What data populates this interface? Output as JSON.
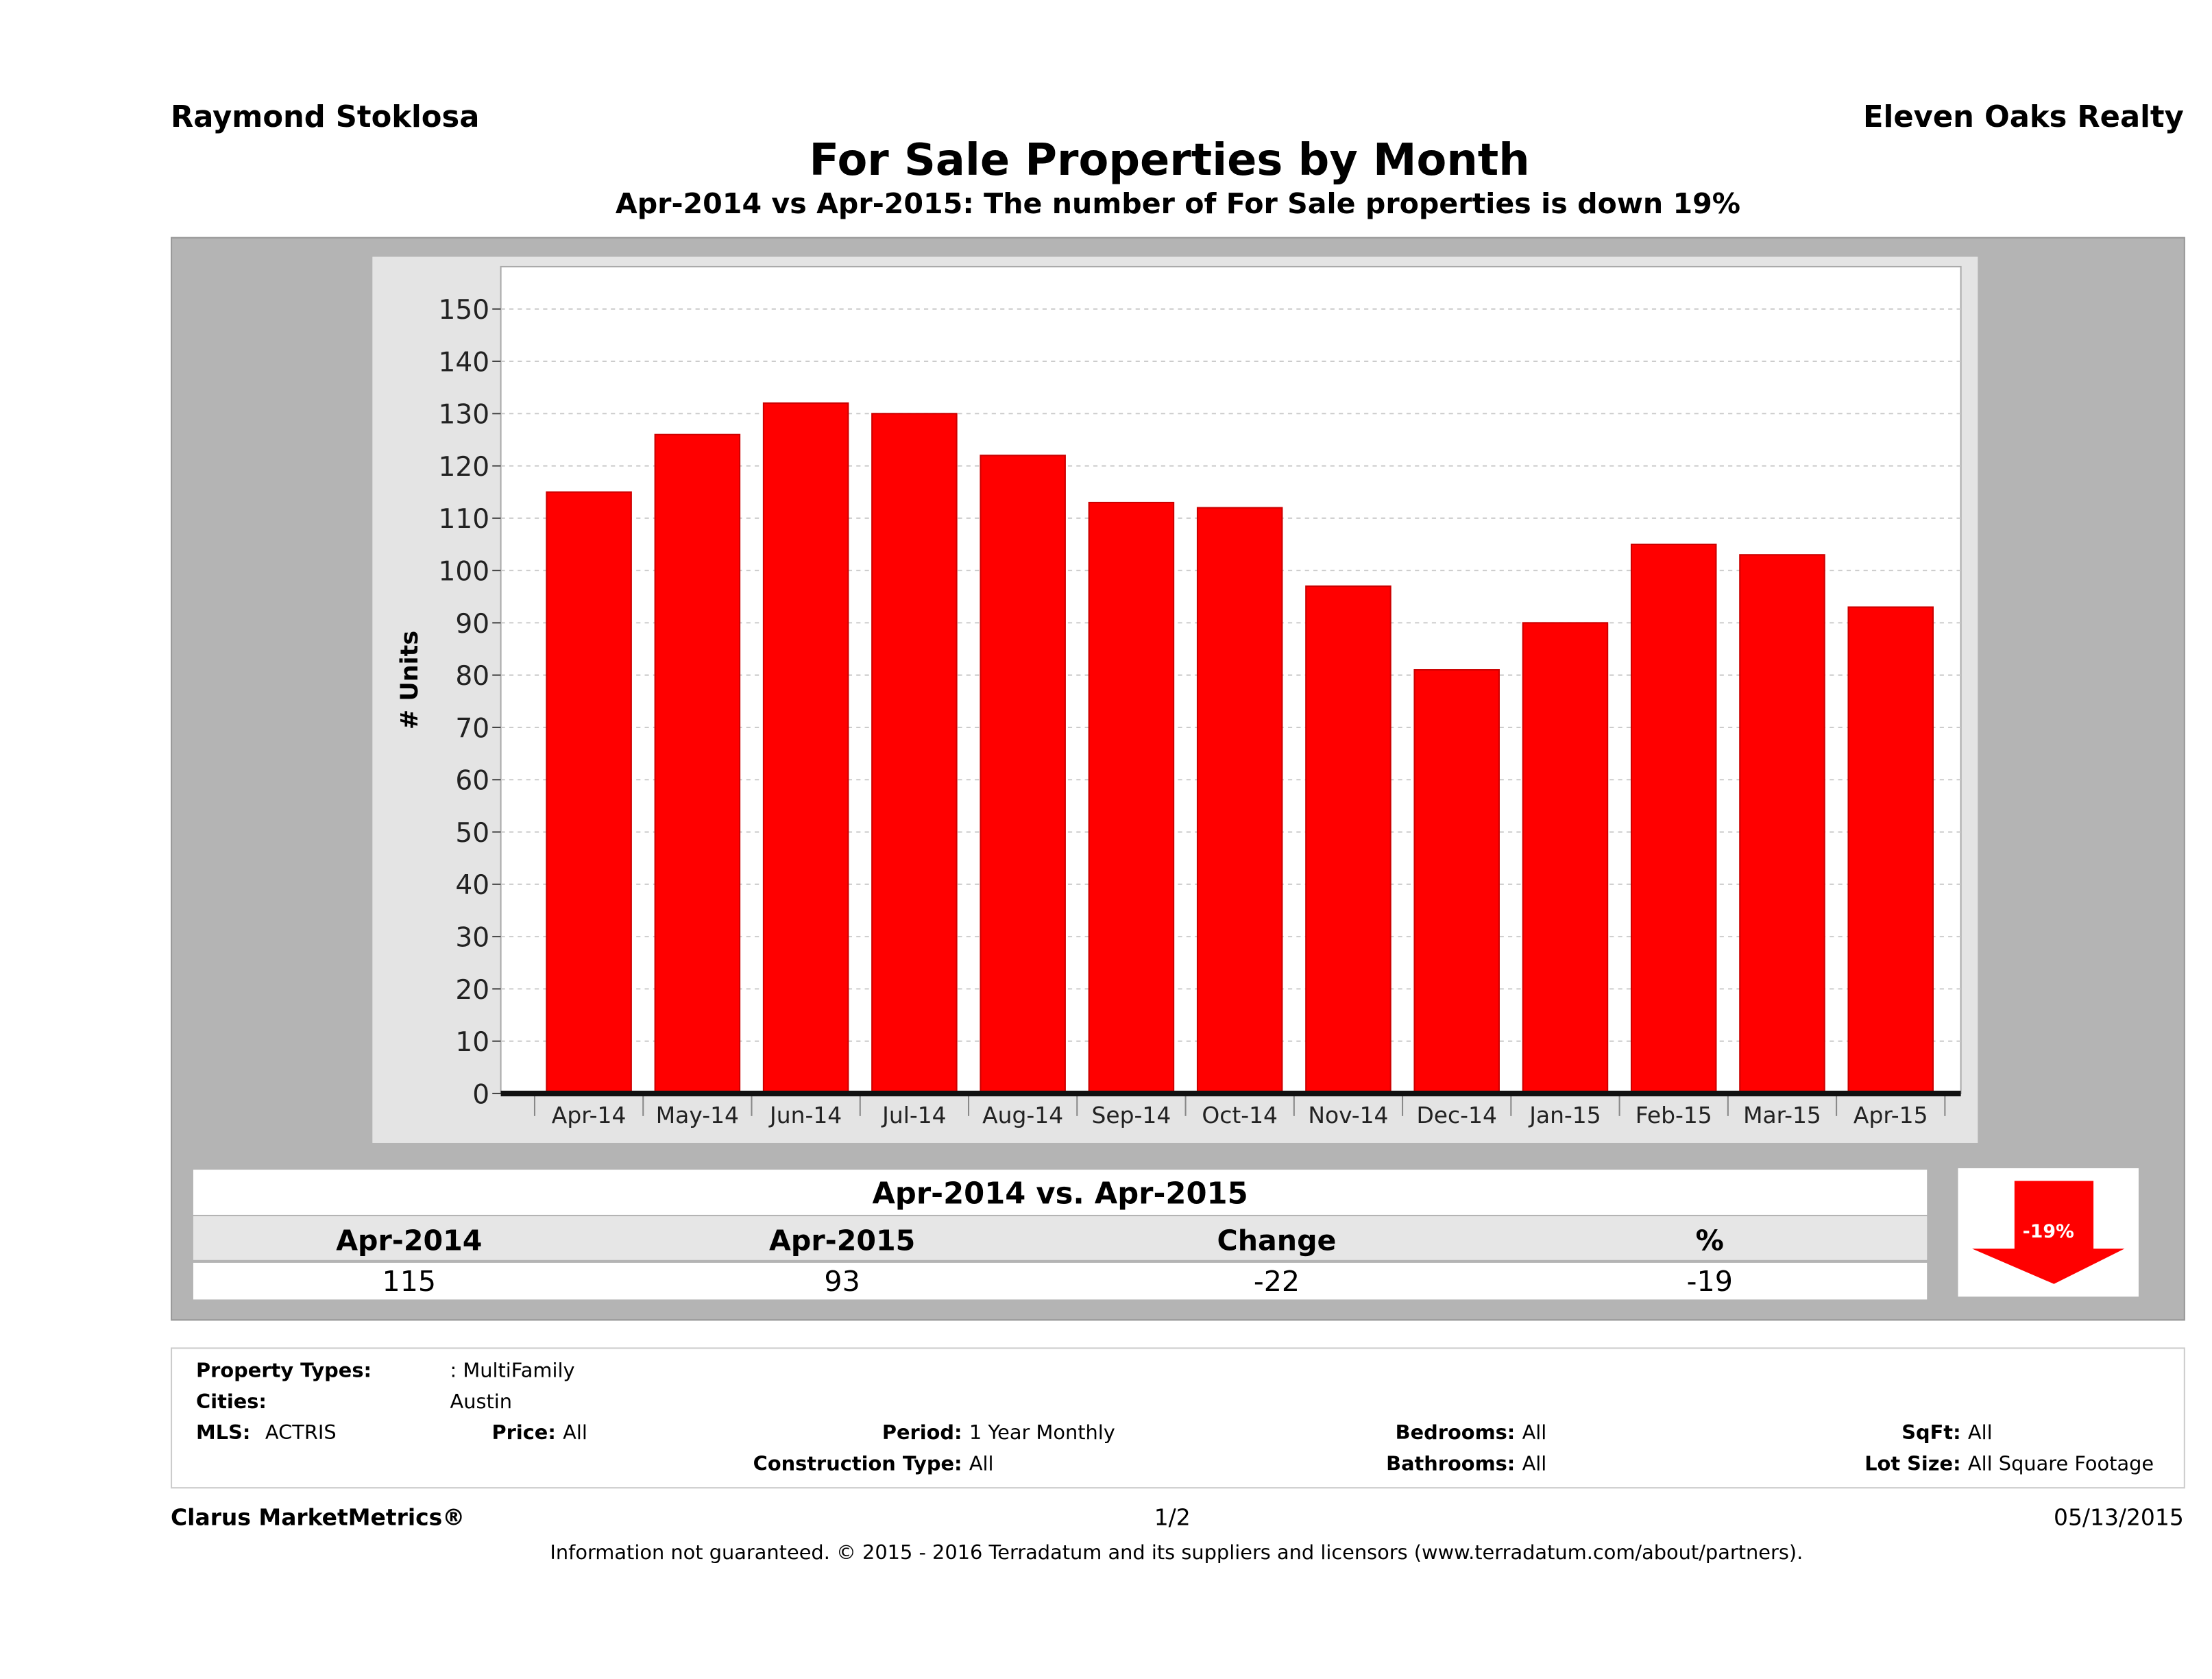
{
  "header": {
    "agent": "Raymond Stoklosa",
    "brokerage": "Eleven Oaks Realty"
  },
  "chart_data": {
    "type": "bar",
    "title": "For Sale Properties by Month",
    "subtitle": "Apr-2014 vs Apr-2015: The number of For Sale  properties is down 19%",
    "xlabel": "",
    "ylabel": "# Units",
    "ylim": [
      0,
      150
    ],
    "yticks": [
      0,
      10,
      20,
      30,
      40,
      50,
      60,
      70,
      80,
      90,
      100,
      110,
      120,
      130,
      140,
      150
    ],
    "grid": true,
    "categories": [
      "Apr-14",
      "May-14",
      "Jun-14",
      "Jul-14",
      "Aug-14",
      "Sep-14",
      "Oct-14",
      "Nov-14",
      "Dec-14",
      "Jan-15",
      "Feb-15",
      "Mar-15",
      "Apr-15"
    ],
    "values": [
      115,
      126,
      132,
      130,
      122,
      113,
      112,
      97,
      81,
      90,
      105,
      103,
      93
    ],
    "bar_color": "#ff0000"
  },
  "summary": {
    "title": "Apr-2014 vs. Apr-2015",
    "headers": [
      "Apr-2014",
      "Apr-2015",
      "Change",
      "%"
    ],
    "values": [
      "115",
      "93",
      "-22",
      "-19"
    ],
    "badge": "-19%",
    "arrow_color": "#ff0000"
  },
  "filters": {
    "property_types_label": "Property Types:",
    "property_types": ": MultiFamily",
    "cities_label": "Cities:",
    "cities": "Austin",
    "mls_label": "MLS:",
    "mls": "ACTRIS",
    "price_label": "Price:",
    "price": "All",
    "period_label": "Period:",
    "period": "1 Year Monthly",
    "construction_label": "Construction Type:",
    "construction": "All",
    "bedrooms_label": "Bedrooms:",
    "bedrooms": "All",
    "bathrooms_label": "Bathrooms:",
    "bathrooms": "All",
    "sqft_label": "SqFt:",
    "sqft": "All",
    "lotsize_label": "Lot Size:",
    "lotsize": "All Square Footage"
  },
  "footer": {
    "brand": "Clarus MarketMetrics®",
    "page": "1/2",
    "date": "05/13/2015",
    "disclaimer": "Information not guaranteed. © 2015 - 2016 Terradatum and its suppliers and licensors (www.terradatum.com/about/partners)."
  }
}
